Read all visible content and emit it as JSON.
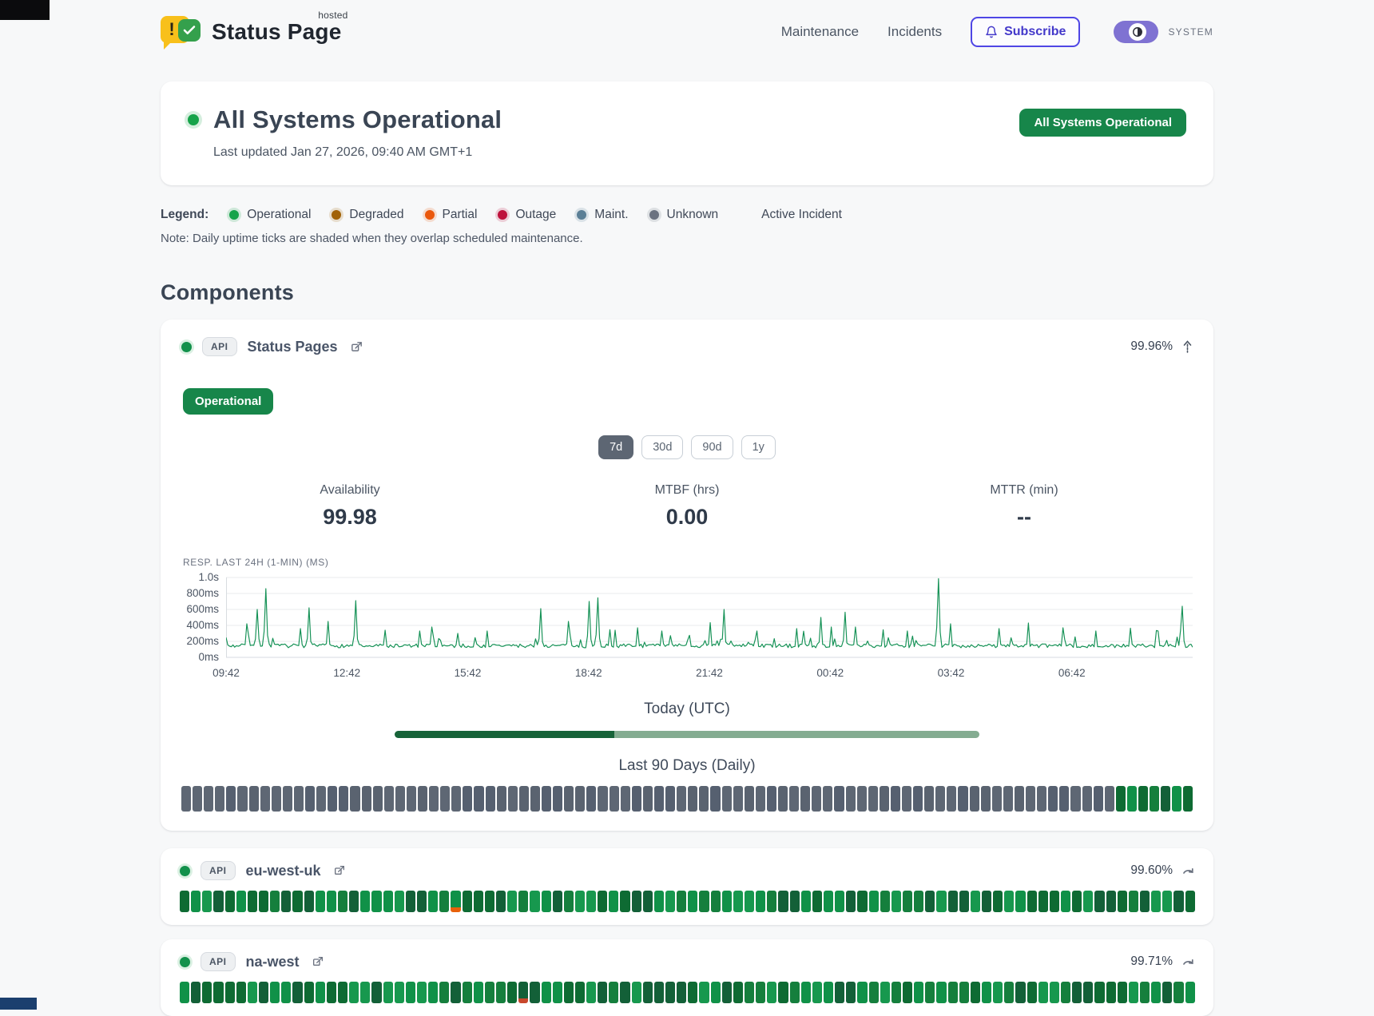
{
  "header": {
    "logo": {
      "title": "Status Page",
      "superscript": "hosted",
      "exclamation": "!"
    },
    "nav": [
      {
        "label": "Maintenance"
      },
      {
        "label": "Incidents"
      }
    ],
    "subscribe_label": "Subscribe",
    "theme_label": "SYSTEM"
  },
  "hero": {
    "title": "All Systems Operational",
    "last_updated": "Last updated Jan 27, 2026, 09:40 AM GMT+1",
    "badge": "All Systems Operational",
    "status_color": "#16a34a"
  },
  "legend": {
    "label": "Legend:",
    "items": [
      {
        "label": "Operational",
        "color": "#16a34a"
      },
      {
        "label": "Degraded",
        "color": "#a16207"
      },
      {
        "label": "Partial",
        "color": "#ea580c"
      },
      {
        "label": "Outage",
        "color": "#be123c"
      },
      {
        "label": "Maint.",
        "color": "#5b7f96"
      },
      {
        "label": "Unknown",
        "color": "#6b7280"
      }
    ],
    "active_incident_label": "Active Incident",
    "note": "Note: Daily uptime ticks are shaded when they overlap scheduled maintenance."
  },
  "components_title": "Components",
  "components": [
    {
      "badge": "API",
      "name": "Status Pages",
      "uptime": "99.96%",
      "status_label": "Operational",
      "ranges": [
        {
          "label": "7d",
          "active": true
        },
        {
          "label": "30d",
          "active": false
        },
        {
          "label": "90d",
          "active": false
        },
        {
          "label": "1y",
          "active": false
        }
      ],
      "stats": [
        {
          "label": "Availability",
          "value": "99.98"
        },
        {
          "label": "MTBF (hrs)",
          "value": "0.00"
        },
        {
          "label": "MTTR (min)",
          "value": "--"
        }
      ],
      "ticks": {
        "total": 90,
        "gray_leading": 83,
        "green_trailing": 7
      }
    },
    {
      "badge": "API",
      "name": "eu-west-uk",
      "uptime": "99.60%",
      "ticks": {
        "total": 90,
        "gray_leading": 0,
        "green_trailing": 90,
        "partial_index": 24,
        "partial_color": "#e8610a"
      }
    },
    {
      "badge": "API",
      "name": "na-west",
      "uptime": "99.71%",
      "ticks": {
        "total": 90,
        "gray_leading": 0,
        "green_trailing": 90,
        "partial_index": 30,
        "partial_color": "#c8472c"
      }
    }
  ],
  "chart_data": {
    "type": "line",
    "title": "RESP. LAST 24H (1-MIN) (MS)",
    "y_ticks": [
      "1.0s",
      "800ms",
      "600ms",
      "400ms",
      "200ms",
      "0ms"
    ],
    "y_values_ms": [
      1000,
      800,
      600,
      400,
      200,
      0
    ],
    "x_ticks": [
      "09:42",
      "12:42",
      "15:42",
      "18:42",
      "21:42",
      "00:42",
      "03:42",
      "06:42"
    ],
    "x_tick_hours_step": 3,
    "window_hours": 24,
    "ylim_ms": [
      0,
      1000
    ],
    "baseline_ms": [
      135,
      260
    ],
    "line_color": "#149155",
    "grid": true,
    "samples": 560,
    "seed": 7,
    "spikes": [
      {
        "f": 0.022,
        "ms": 420
      },
      {
        "f": 0.032,
        "ms": 600
      },
      {
        "f": 0.042,
        "ms": 860
      },
      {
        "f": 0.085,
        "ms": 620
      },
      {
        "f": 0.105,
        "ms": 450
      },
      {
        "f": 0.135,
        "ms": 710
      },
      {
        "f": 0.165,
        "ms": 340
      },
      {
        "f": 0.2,
        "ms": 330
      },
      {
        "f": 0.24,
        "ms": 300
      },
      {
        "f": 0.27,
        "ms": 330
      },
      {
        "f": 0.325,
        "ms": 610
      },
      {
        "f": 0.355,
        "ms": 450
      },
      {
        "f": 0.375,
        "ms": 700
      },
      {
        "f": 0.385,
        "ms": 745
      },
      {
        "f": 0.425,
        "ms": 370
      },
      {
        "f": 0.45,
        "ms": 330
      },
      {
        "f": 0.5,
        "ms": 435
      },
      {
        "f": 0.515,
        "ms": 600
      },
      {
        "f": 0.55,
        "ms": 330
      },
      {
        "f": 0.59,
        "ms": 360
      },
      {
        "f": 0.615,
        "ms": 500
      },
      {
        "f": 0.64,
        "ms": 565
      },
      {
        "f": 0.68,
        "ms": 345
      },
      {
        "f": 0.705,
        "ms": 330
      },
      {
        "f": 0.737,
        "ms": 985
      },
      {
        "f": 0.75,
        "ms": 420
      },
      {
        "f": 0.8,
        "ms": 360
      },
      {
        "f": 0.83,
        "ms": 430
      },
      {
        "f": 0.865,
        "ms": 370
      },
      {
        "f": 0.9,
        "ms": 330
      },
      {
        "f": 0.935,
        "ms": 365
      },
      {
        "f": 0.965,
        "ms": 330
      },
      {
        "f": 0.99,
        "ms": 640
      }
    ]
  },
  "today": {
    "label": "Today (UTC)",
    "elapsed_pct": 37.5,
    "elapsed_color": "#176339",
    "remaining_color": "#84ac91"
  },
  "ninety": {
    "label": "Last 90 Days (Daily)"
  },
  "tick_palette": {
    "greens": [
      "#157f3d",
      "#109148",
      "#0e6b33",
      "#17984e",
      "#136038"
    ],
    "grays": [
      "#5a6370",
      "#5e6774",
      "#566070"
    ]
  }
}
